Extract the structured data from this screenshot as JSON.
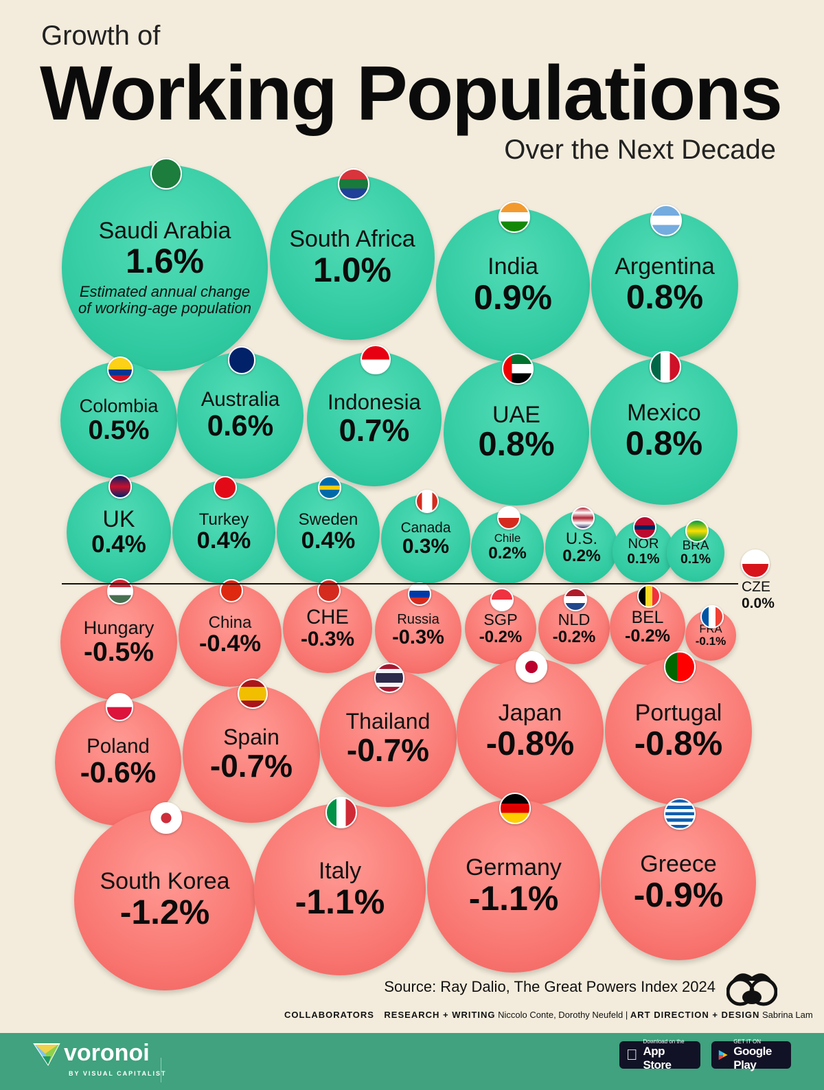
{
  "header": {
    "line1": "Growth of",
    "line2": "Working Populations",
    "line3": "Over the Next Decade",
    "icon": "people-group-icon"
  },
  "chart_data": {
    "type": "bubble",
    "title": "Growth of Working Populations Over the Next Decade",
    "value_note": "Estimated annual change of working-age population",
    "unit": "%",
    "colors": {
      "positive": "#2fc9a0",
      "negative": "#f8736e"
    },
    "items": [
      {
        "label": "Saudi Arabia",
        "value": 1.6,
        "text": "1.6%"
      },
      {
        "label": "South Africa",
        "value": 1.0,
        "text": "1.0%"
      },
      {
        "label": "India",
        "value": 0.9,
        "text": "0.9%"
      },
      {
        "label": "Argentina",
        "value": 0.8,
        "text": "0.8%"
      },
      {
        "label": "Colombia",
        "value": 0.5,
        "text": "0.5%"
      },
      {
        "label": "Australia",
        "value": 0.6,
        "text": "0.6%"
      },
      {
        "label": "Indonesia",
        "value": 0.7,
        "text": "0.7%"
      },
      {
        "label": "UAE",
        "value": 0.8,
        "text": "0.8%"
      },
      {
        "label": "Mexico",
        "value": 0.8,
        "text": "0.8%"
      },
      {
        "label": "UK",
        "value": 0.4,
        "text": "0.4%"
      },
      {
        "label": "Turkey",
        "value": 0.4,
        "text": "0.4%"
      },
      {
        "label": "Sweden",
        "value": 0.4,
        "text": "0.4%"
      },
      {
        "label": "Canada",
        "value": 0.3,
        "text": "0.3%"
      },
      {
        "label": "Chile",
        "value": 0.2,
        "text": "0.2%"
      },
      {
        "label": "U.S.",
        "value": 0.2,
        "text": "0.2%"
      },
      {
        "label": "NOR",
        "value": 0.1,
        "text": "0.1%"
      },
      {
        "label": "BRA",
        "value": 0.1,
        "text": "0.1%"
      },
      {
        "label": "CZE",
        "value": 0.0,
        "text": "0.0%"
      },
      {
        "label": "Hungary",
        "value": -0.5,
        "text": "-0.5%"
      },
      {
        "label": "China",
        "value": -0.4,
        "text": "-0.4%"
      },
      {
        "label": "CHE",
        "value": -0.3,
        "text": "-0.3%"
      },
      {
        "label": "Russia",
        "value": -0.3,
        "text": "-0.3%"
      },
      {
        "label": "SGP",
        "value": -0.2,
        "text": "-0.2%"
      },
      {
        "label": "NLD",
        "value": -0.2,
        "text": "-0.2%"
      },
      {
        "label": "BEL",
        "value": -0.2,
        "text": "-0.2%"
      },
      {
        "label": "FRA",
        "value": -0.1,
        "text": "-0.1%"
      },
      {
        "label": "Poland",
        "value": -0.6,
        "text": "-0.6%"
      },
      {
        "label": "Spain",
        "value": -0.7,
        "text": "-0.7%"
      },
      {
        "label": "Thailand",
        "value": -0.7,
        "text": "-0.7%"
      },
      {
        "label": "Japan",
        "value": -0.8,
        "text": "-0.8%"
      },
      {
        "label": "Portugal",
        "value": -0.8,
        "text": "-0.8%"
      },
      {
        "label": "South Korea",
        "value": -1.2,
        "text": "-1.2%"
      },
      {
        "label": "Italy",
        "value": -1.1,
        "text": "-1.1%"
      },
      {
        "label": "Germany",
        "value": -1.1,
        "text": "-1.1%"
      },
      {
        "label": "Greece",
        "value": -0.9,
        "text": "-0.9%"
      }
    ]
  },
  "footer": {
    "source": "Source: Ray Dalio, The Great Powers Index 2024",
    "collaborators": "COLLABORATORS",
    "research_label": "RESEARCH + WRITING",
    "research_names": "Niccolo Conte, Dorothy Neufeld",
    "separator": "|",
    "art_label": "ART DIRECTION + DESIGN",
    "art_names": "Sabrina Lam",
    "brand": "voronoi",
    "brand_sub": "BY VISUAL CAPITALIST",
    "app_store_small": "Download on the",
    "app_store": "App Store",
    "google_small": "GET IT ON",
    "google": "Google Play"
  }
}
